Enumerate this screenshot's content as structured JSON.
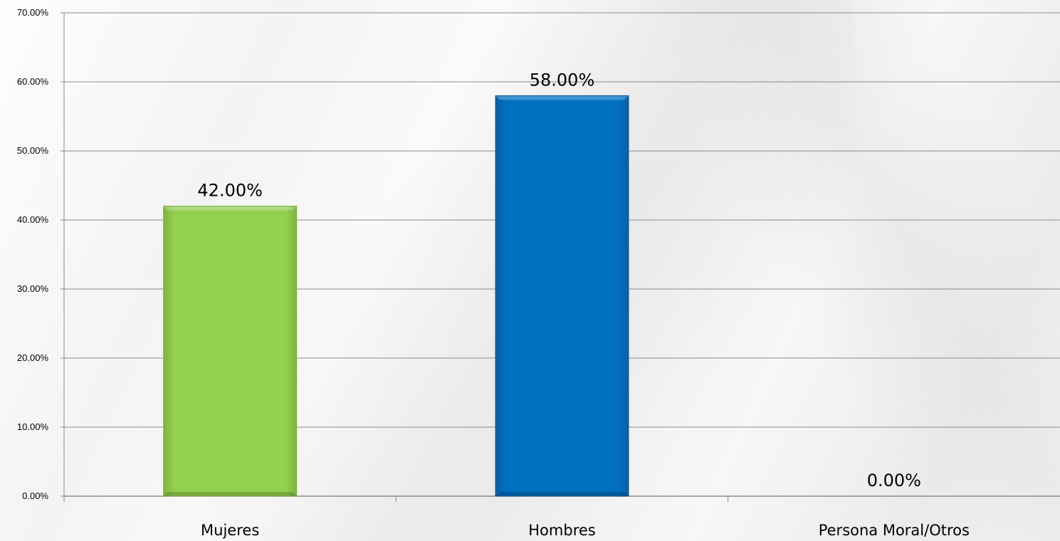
{
  "chart_data": {
    "type": "bar",
    "categories": [
      "Mujeres",
      "Hombres",
      "Persona Moral/Otros"
    ],
    "values": [
      42.0,
      58.0,
      0.0
    ],
    "data_labels": [
      "42.00%",
      "58.00%",
      "0.00%"
    ],
    "ylim": [
      0,
      70
    ],
    "yticks": [
      0,
      10,
      20,
      30,
      40,
      50,
      60,
      70
    ],
    "ytick_labels": [
      "0.00%",
      "10.00%",
      "20.00%",
      "30.00%",
      "40.00%",
      "50.00%",
      "60.00%",
      "70.00%"
    ],
    "grid": true,
    "legend": "none",
    "colors": {
      "bars": [
        "#92d050",
        "#0070c0",
        "#a5a5a5"
      ],
      "bar_edges": [
        "#7ab03e",
        "#0a5a9c",
        "#8c8c8c"
      ],
      "gridline": "#8a8a8a",
      "axis": "#8a8a8a"
    }
  }
}
